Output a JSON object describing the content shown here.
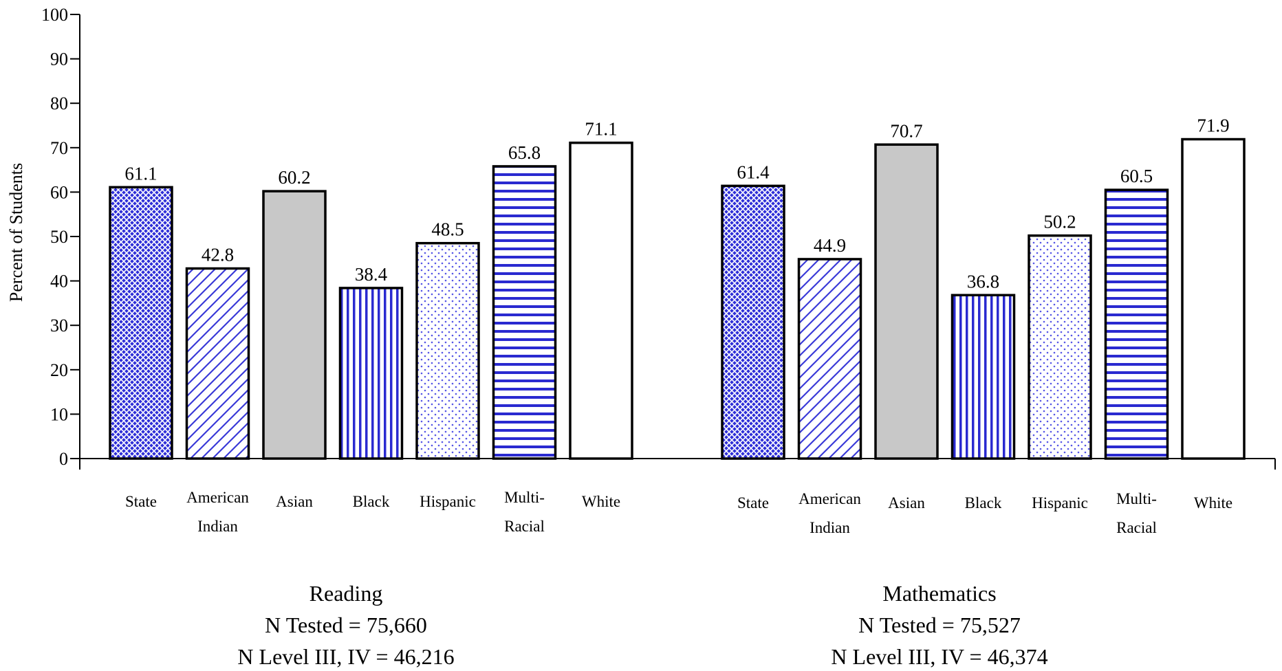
{
  "chart_data": {
    "type": "bar",
    "title": "",
    "ylabel": "Percent of Students",
    "xlabel": "",
    "ylim": [
      0,
      100
    ],
    "yticks": [
      0,
      10,
      20,
      30,
      40,
      50,
      60,
      70,
      80,
      90,
      100
    ],
    "grid": false,
    "legend": "none",
    "groups": [
      {
        "name": "Reading",
        "info_lines": [
          "Reading",
          "N Tested = 75,660",
          "N Level III, IV = 46,216"
        ],
        "categories": [
          [
            "State"
          ],
          [
            "American",
            "Indian"
          ],
          [
            "Asian"
          ],
          [
            "Black"
          ],
          [
            "Hispanic"
          ],
          [
            "Multi-",
            "Racial"
          ],
          [
            "White"
          ]
        ],
        "values": [
          61.1,
          42.8,
          60.2,
          38.4,
          48.5,
          65.8,
          71.1
        ],
        "value_labels": [
          "61.1",
          "42.8",
          "60.2",
          "38.4",
          "48.5",
          "65.8",
          "71.1"
        ]
      },
      {
        "name": "Mathematics",
        "info_lines": [
          "Mathematics",
          "N Tested = 75,527",
          "N Level III, IV = 46,374"
        ],
        "categories": [
          [
            "State"
          ],
          [
            "American",
            "Indian"
          ],
          [
            "Asian"
          ],
          [
            "Black"
          ],
          [
            "Hispanic"
          ],
          [
            "Multi-",
            "Racial"
          ],
          [
            "White"
          ]
        ],
        "values": [
          61.4,
          44.9,
          70.7,
          36.8,
          50.2,
          60.5,
          71.9
        ],
        "value_labels": [
          "61.4",
          "44.9",
          "70.7",
          "36.8",
          "50.2",
          "60.5",
          "71.9"
        ]
      }
    ],
    "bar_styles": [
      {
        "category": "State",
        "pattern": "crosshatch",
        "color": "#2f2fd8"
      },
      {
        "category": "American Indian",
        "pattern": "diagonal",
        "color": "#3a3ad8"
      },
      {
        "category": "Asian",
        "pattern": "solid",
        "color": "#c8c8c8"
      },
      {
        "category": "Black",
        "pattern": "vertical",
        "color": "#2a2ad0"
      },
      {
        "category": "Hispanic",
        "pattern": "dots",
        "color": "#5555e6"
      },
      {
        "category": "Multi-Racial",
        "pattern": "horizontal",
        "color": "#2a2ad0"
      },
      {
        "category": "White",
        "pattern": "none",
        "color": "#ffffff"
      }
    ]
  }
}
